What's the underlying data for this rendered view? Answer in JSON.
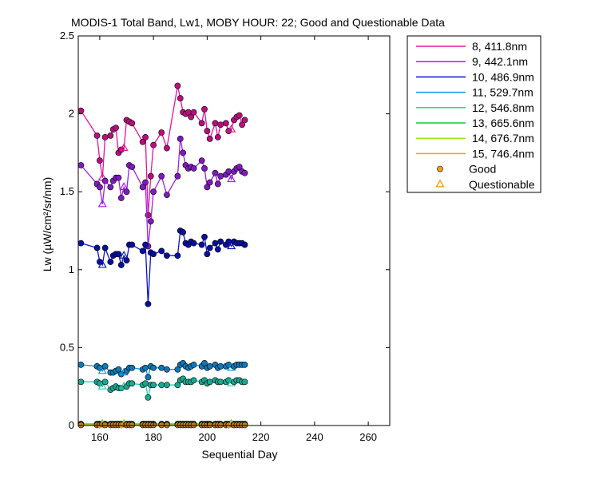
{
  "chart_data": {
    "type": "line",
    "title": "MODIS-1 Total Band,  Lw1, MOBY HOUR: 22;  Good and Questionable Data",
    "xlabel": "Sequential Day",
    "ylabel": "Lw (µW/cm²/sr/nm)",
    "xlim": [
      152,
      268
    ],
    "ylim": [
      0,
      2.5
    ],
    "xticks": [
      "160",
      "180",
      "200",
      "220",
      "240",
      "260"
    ],
    "yticks": [
      "0",
      "0.5",
      "1",
      "1.5",
      "2",
      "2.5"
    ],
    "grid": false,
    "legend_position": "outside-top-right",
    "x": [
      153,
      159,
      160,
      161,
      162,
      164,
      165,
      166,
      167,
      168,
      169,
      170,
      171,
      172,
      176,
      177,
      178,
      179,
      180,
      183,
      185,
      189,
      190,
      191,
      192,
      193,
      194,
      195,
      198,
      199,
      200,
      201,
      203,
      204,
      205,
      207,
      208,
      209,
      210,
      211,
      212,
      213,
      214
    ],
    "series": [
      {
        "name": "8, 411.8nm",
        "color": "#e8129e",
        "values": [
          2.02,
          1.86,
          1.7,
          1.59,
          1.85,
          1.86,
          1.9,
          1.91,
          1.75,
          1.77,
          1.78,
          1.96,
          1.95,
          1.94,
          1.82,
          1.85,
          1.35,
          1.6,
          1.8,
          1.88,
          1.78,
          2.18,
          2.1,
          2.01,
          2.0,
          2.01,
          1.98,
          2.01,
          1.94,
          2.03,
          1.89,
          1.84,
          1.94,
          1.85,
          1.93,
          1.94,
          1.89,
          1.9,
          1.96,
          1.98,
          1.99,
          1.93,
          1.96
        ]
      },
      {
        "name": "9, 442.1nm",
        "color": "#a020f0",
        "values": [
          1.67,
          1.55,
          1.53,
          1.42,
          1.57,
          1.53,
          1.57,
          1.59,
          1.59,
          1.46,
          1.53,
          1.5,
          1.67,
          1.66,
          1.53,
          1.56,
          1.15,
          1.31,
          1.5,
          1.6,
          1.48,
          1.6,
          1.84,
          1.75,
          1.67,
          1.65,
          1.66,
          1.65,
          1.7,
          1.65,
          1.53,
          1.56,
          1.62,
          1.55,
          1.6,
          1.61,
          1.63,
          1.58,
          1.63,
          1.65,
          1.66,
          1.63,
          1.62
        ]
      },
      {
        "name": "10, 486.9nm",
        "color": "#0a14c8",
        "values": [
          1.17,
          1.14,
          1.05,
          1.03,
          1.14,
          1.05,
          1.09,
          1.1,
          1.1,
          1.03,
          1.09,
          1.06,
          1.16,
          1.16,
          1.12,
          1.16,
          0.78,
          1.11,
          1.1,
          1.12,
          1.09,
          1.09,
          1.25,
          1.24,
          1.17,
          1.16,
          1.18,
          1.17,
          1.16,
          1.21,
          1.1,
          1.14,
          1.17,
          1.13,
          1.18,
          1.16,
          1.18,
          1.15,
          1.18,
          1.17,
          1.17,
          1.17,
          1.16
        ]
      },
      {
        "name": "11, 529.7nm",
        "color": "#1296e6",
        "values": [
          0.39,
          0.38,
          0.37,
          0.35,
          0.38,
          0.34,
          0.34,
          0.35,
          0.36,
          0.33,
          0.34,
          0.35,
          0.37,
          0.37,
          0.36,
          0.37,
          0.31,
          0.38,
          0.37,
          0.37,
          0.36,
          0.36,
          0.39,
          0.4,
          0.38,
          0.37,
          0.38,
          0.39,
          0.38,
          0.4,
          0.37,
          0.38,
          0.39,
          0.37,
          0.38,
          0.38,
          0.39,
          0.37,
          0.38,
          0.39,
          0.39,
          0.39,
          0.39
        ]
      },
      {
        "name": "12, 546.8nm",
        "color": "#20d2b4",
        "values": [
          0.28,
          0.28,
          0.27,
          0.25,
          0.28,
          0.23,
          0.24,
          0.25,
          0.24,
          0.24,
          0.25,
          0.25,
          0.27,
          0.27,
          0.26,
          0.27,
          0.18,
          0.26,
          0.26,
          0.26,
          0.26,
          0.26,
          0.29,
          0.3,
          0.28,
          0.28,
          0.28,
          0.29,
          0.28,
          0.29,
          0.27,
          0.28,
          0.29,
          0.28,
          0.28,
          0.28,
          0.29,
          0.27,
          0.28,
          0.29,
          0.29,
          0.28,
          0.28
        ]
      },
      {
        "name": "13, 665.6nm",
        "color": "#14c83c",
        "values": [
          0.01,
          0.01,
          0.01,
          0.01,
          0.01,
          0.01,
          0.01,
          0.01,
          0.01,
          0.01,
          0.01,
          0.01,
          0.01,
          0.01,
          0.01,
          0.01,
          0.01,
          0.01,
          0.01,
          0.01,
          0.01,
          0.01,
          0.01,
          0.01,
          0.01,
          0.01,
          0.01,
          0.01,
          0.01,
          0.01,
          0.01,
          0.01,
          0.01,
          0.01,
          0.01,
          0.01,
          0.01,
          0.01,
          0.01,
          0.01,
          0.01,
          0.01,
          0.01
        ]
      },
      {
        "name": "14, 676.7nm",
        "color": "#9ae614",
        "values": [
          0.005,
          0.005,
          0.005,
          0.005,
          0.005,
          0.005,
          0.005,
          0.005,
          0.005,
          0.005,
          0.005,
          0.005,
          0.005,
          0.005,
          0.005,
          0.005,
          0.005,
          0.005,
          0.005,
          0.005,
          0.005,
          0.005,
          0.005,
          0.005,
          0.005,
          0.005,
          0.005,
          0.005,
          0.005,
          0.005,
          0.005,
          0.005,
          0.005,
          0.005,
          0.005,
          0.005,
          0.005,
          0.005,
          0.005,
          0.005,
          0.005,
          0.005,
          0.005
        ]
      },
      {
        "name": "15, 746.4nm",
        "color": "#f0a01e",
        "values": [
          0.003,
          0.003,
          0.003,
          0.003,
          0.003,
          0.003,
          0.003,
          0.003,
          0.003,
          0.003,
          0.003,
          0.003,
          0.003,
          0.003,
          0.003,
          0.003,
          0.003,
          0.003,
          0.003,
          0.003,
          0.003,
          0.003,
          0.003,
          0.003,
          0.003,
          0.003,
          0.003,
          0.003,
          0.003,
          0.003,
          0.003,
          0.003,
          0.003,
          0.003,
          0.003,
          0.003,
          0.003,
          0.003,
          0.003,
          0.003,
          0.003,
          0.003,
          0.003
        ]
      }
    ],
    "questionable_x": [
      161,
      169,
      209
    ],
    "legend_markers": [
      {
        "label": "Good",
        "marker": "circle",
        "color": "#f0a01e"
      },
      {
        "label": "Questionable",
        "marker": "triangle",
        "color": "#f0a01e"
      }
    ]
  }
}
